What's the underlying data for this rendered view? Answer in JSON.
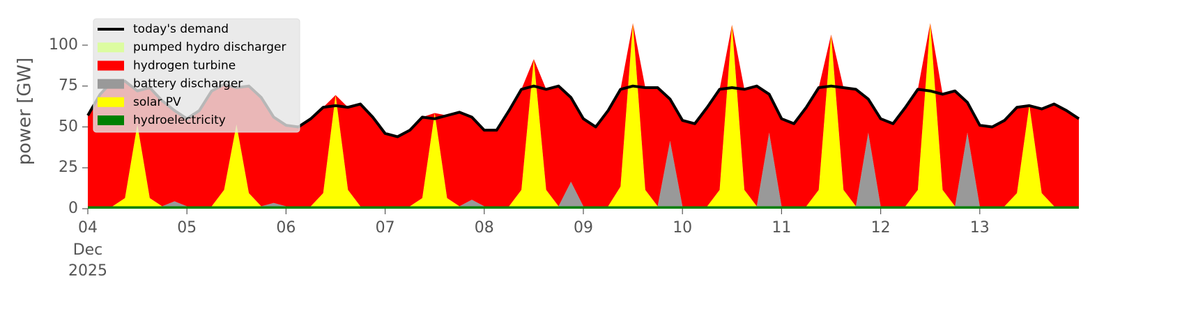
{
  "chart_data": {
    "type": "stacked-area",
    "ylabel": "power [GW]",
    "x_sublabels": [
      "Dec",
      "2025"
    ],
    "xlim": [
      0,
      10
    ],
    "ylim": [
      0,
      114
    ],
    "xticks": [
      {
        "value": 0,
        "label": "04"
      },
      {
        "value": 1,
        "label": "05"
      },
      {
        "value": 2,
        "label": "06"
      },
      {
        "value": 3,
        "label": "07"
      },
      {
        "value": 4,
        "label": "08"
      },
      {
        "value": 5,
        "label": "09"
      },
      {
        "value": 6,
        "label": "10"
      },
      {
        "value": 7,
        "label": "11"
      },
      {
        "value": 8,
        "label": "12"
      },
      {
        "value": 9,
        "label": "13"
      }
    ],
    "yticks": [
      0,
      25,
      50,
      75,
      100
    ],
    "legend": "upper left",
    "x": [
      0,
      0.125,
      0.25,
      0.375,
      0.5,
      0.625,
      0.75,
      0.875,
      1,
      1.125,
      1.25,
      1.375,
      1.5,
      1.625,
      1.75,
      1.875,
      2,
      2.125,
      2.25,
      2.375,
      2.5,
      2.625,
      2.75,
      2.875,
      3,
      3.125,
      3.25,
      3.375,
      3.5,
      3.625,
      3.75,
      3.875,
      4,
      4.125,
      4.25,
      4.375,
      4.5,
      4.625,
      4.75,
      4.875,
      5,
      5.125,
      5.25,
      5.375,
      5.5,
      5.625,
      5.75,
      5.875,
      6,
      6.125,
      6.25,
      6.375,
      6.5,
      6.625,
      6.75,
      6.875,
      7,
      7.125,
      7.25,
      7.375,
      7.5,
      7.625,
      7.75,
      7.875,
      8,
      8.125,
      8.25,
      8.375,
      8.5,
      8.625,
      8.75,
      8.875,
      9,
      9.125,
      9.25,
      9.375,
      9.5,
      9.625,
      9.75,
      9.875,
      10
    ],
    "series": [
      {
        "name": "today's demand",
        "kind": "line",
        "color": "#000000",
        "values": [
          57,
          70,
          78,
          78,
          72,
          74,
          66,
          60,
          55,
          60,
          72,
          76,
          74,
          75,
          68,
          56,
          51,
          50,
          55,
          62,
          63,
          62,
          64,
          56,
          46,
          44,
          48,
          56,
          55,
          57,
          59,
          56,
          48,
          48,
          60,
          73,
          75,
          73,
          75,
          68,
          55,
          50,
          60,
          73,
          75,
          74,
          74,
          67,
          54,
          52,
          62,
          73,
          74,
          73,
          75,
          70,
          55,
          52,
          62,
          74,
          75,
          74,
          73,
          67,
          55,
          52,
          62,
          73,
          72,
          70,
          72,
          65,
          51,
          50,
          54,
          62,
          63,
          61,
          64,
          60,
          55
        ]
      },
      {
        "name": "pumped hydro discharger",
        "kind": "area",
        "color": "#dcfca0",
        "values": [
          0,
          0,
          0,
          0,
          0,
          0,
          0,
          0,
          0,
          0,
          0,
          0,
          0,
          0,
          0,
          0,
          0,
          0,
          0,
          0,
          0,
          0,
          0,
          0,
          0,
          0,
          0,
          0,
          0,
          0,
          0,
          0,
          0,
          0,
          0,
          0,
          0,
          0,
          0,
          0,
          0,
          0,
          0,
          0,
          0,
          0,
          0,
          0,
          0,
          0,
          0,
          0,
          0,
          0,
          0,
          0,
          0,
          0,
          0,
          0,
          0,
          0,
          0,
          0,
          0,
          0,
          0,
          0,
          0,
          0,
          0,
          0,
          0,
          0,
          0,
          0,
          0,
          0,
          0,
          0,
          0
        ]
      },
      {
        "name": "hydrogen turbine",
        "kind": "area",
        "color": "#ff0000",
        "values": [
          55.5,
          68.5,
          76.5,
          71.5,
          20.5,
          67.5,
          64.5,
          55.5,
          53.5,
          58.5,
          70.5,
          64.5,
          22.5,
          65.5,
          66.5,
          52.5,
          49.5,
          48.5,
          53.5,
          52.5,
          0,
          50.5,
          62.5,
          54.5,
          44.5,
          42.5,
          46.5,
          49.5,
          0,
          50.5,
          57.5,
          50.5,
          46.5,
          46.5,
          58.5,
          61.5,
          0,
          61.5,
          73.5,
          51.5,
          53.5,
          48.5,
          58.5,
          59.5,
          0,
          62.5,
          72.5,
          25.5,
          52.5,
          50.5,
          60.5,
          61.5,
          0,
          61.5,
          73.5,
          23.5,
          53.5,
          50.5,
          60.5,
          62.5,
          0,
          62.5,
          71.5,
          20.5,
          53.5,
          50.5,
          60.5,
          61.5,
          0,
          58.5,
          70.5,
          18.5,
          49.5,
          48.5,
          52.5,
          52.5,
          0,
          51.5,
          62.5,
          58.5,
          53.5
        ]
      },
      {
        "name": "battery discharger",
        "kind": "area",
        "color": "#999999",
        "values": [
          0,
          0,
          0,
          0,
          0,
          0,
          0,
          3,
          0,
          0,
          0,
          0,
          0,
          0,
          0,
          2,
          0,
          0,
          0,
          0,
          0,
          0,
          0,
          0,
          0,
          0,
          0,
          0,
          0,
          0,
          0,
          4,
          0,
          0,
          0,
          0,
          0,
          0,
          0,
          15,
          0,
          0,
          0,
          0,
          0,
          0,
          0,
          40,
          0,
          0,
          0,
          0,
          0,
          0,
          0,
          45,
          0,
          0,
          0,
          0,
          0,
          0,
          0,
          45,
          0,
          0,
          0,
          0,
          0,
          0,
          0,
          45,
          0,
          0,
          0,
          0,
          0,
          0,
          0,
          0,
          0
        ]
      },
      {
        "name": "solar PV",
        "kind": "area",
        "color": "#ffff00",
        "values": [
          0,
          0,
          0,
          5,
          50,
          5,
          0,
          0,
          0,
          0,
          0,
          10,
          50,
          8,
          0,
          0,
          0,
          0,
          0,
          8,
          68,
          10,
          0,
          0,
          0,
          0,
          0,
          5,
          57,
          5,
          0,
          0,
          0,
          0,
          0,
          10,
          90,
          10,
          0,
          0,
          0,
          0,
          0,
          12,
          112,
          10,
          0,
          0,
          0,
          0,
          0,
          10,
          111,
          10,
          0,
          0,
          0,
          0,
          0,
          10,
          105,
          10,
          0,
          0,
          0,
          0,
          0,
          10,
          112,
          10,
          0,
          0,
          0,
          0,
          0,
          8,
          62,
          8,
          0,
          0,
          0
        ]
      },
      {
        "name": "hydroelectricity",
        "kind": "area",
        "color": "#008000",
        "values": [
          1.5,
          1.5,
          1.5,
          1.5,
          1.5,
          1.5,
          1.5,
          1.5,
          1.5,
          1.5,
          1.5,
          1.5,
          1.5,
          1.5,
          1.5,
          1.5,
          1.5,
          1.5,
          1.5,
          1.5,
          1.5,
          1.5,
          1.5,
          1.5,
          1.5,
          1.5,
          1.5,
          1.5,
          1.5,
          1.5,
          1.5,
          1.5,
          1.5,
          1.5,
          1.5,
          1.5,
          1.5,
          1.5,
          1.5,
          1.5,
          1.5,
          1.5,
          1.5,
          1.5,
          1.5,
          1.5,
          1.5,
          1.5,
          1.5,
          1.5,
          1.5,
          1.5,
          1.5,
          1.5,
          1.5,
          1.5,
          1.5,
          1.5,
          1.5,
          1.5,
          1.5,
          1.5,
          1.5,
          1.5,
          1.5,
          1.5,
          1.5,
          1.5,
          1.5,
          1.5,
          1.5,
          1.5,
          1.5,
          1.5,
          1.5,
          1.5,
          1.5,
          1.5,
          1.5,
          1.5,
          1.5
        ]
      }
    ]
  }
}
